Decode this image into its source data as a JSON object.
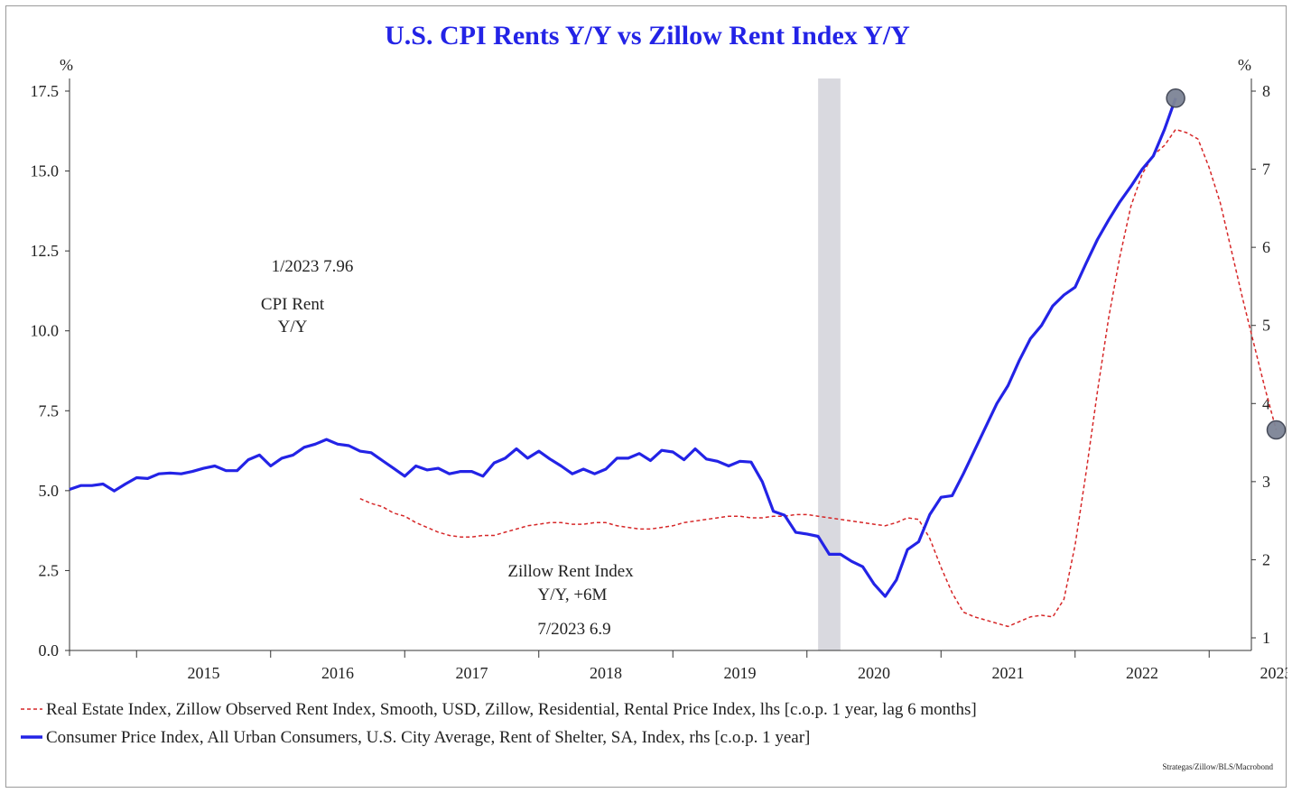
{
  "chart_data": {
    "type": "line",
    "title": "U.S. CPI Rents Y/Y vs Zillow Rent Index Y/Y",
    "left_axis": {
      "unit": "%",
      "ylim": [
        0,
        17.5
      ],
      "ticks": [
        "0.0",
        "2.5",
        "5.0",
        "7.5",
        "10.0",
        "12.5",
        "15.0",
        "17.5"
      ]
    },
    "right_axis": {
      "unit": "%",
      "ylim": [
        1,
        8
      ],
      "ticks": [
        "1",
        "2",
        "3",
        "4",
        "5",
        "6",
        "7",
        "8"
      ]
    },
    "x_axis": {
      "range": [
        "2014-07",
        "2023-10"
      ],
      "tick_labels": [
        "2015",
        "2016",
        "2017",
        "2018",
        "2019",
        "2020",
        "2021",
        "2022",
        "2023"
      ]
    },
    "recession": {
      "start": "2020-02",
      "end": "2020-04"
    },
    "series": [
      {
        "name": "Real Estate Index, Zillow Observed Rent Index, Smooth, USD, Zillow, Residential, Rental Price Index, lhs [c.o.p. 1 year, lag 6 months]",
        "axis": "left",
        "style": "dashed",
        "color": "#d62728",
        "points": [
          [
            "2016-09",
            4.75
          ],
          [
            "2016-10",
            4.6
          ],
          [
            "2016-11",
            4.5
          ],
          [
            "2016-12",
            4.3
          ],
          [
            "2017-01",
            4.2
          ],
          [
            "2017-02",
            4.0
          ],
          [
            "2017-03",
            3.85
          ],
          [
            "2017-04",
            3.7
          ],
          [
            "2017-05",
            3.6
          ],
          [
            "2017-06",
            3.55
          ],
          [
            "2017-07",
            3.55
          ],
          [
            "2017-08",
            3.6
          ],
          [
            "2017-09",
            3.6
          ],
          [
            "2017-10",
            3.7
          ],
          [
            "2017-11",
            3.8
          ],
          [
            "2017-12",
            3.9
          ],
          [
            "2018-01",
            3.95
          ],
          [
            "2018-02",
            4.0
          ],
          [
            "2018-03",
            4.0
          ],
          [
            "2018-04",
            3.95
          ],
          [
            "2018-05",
            3.95
          ],
          [
            "2018-06",
            4.0
          ],
          [
            "2018-07",
            4.0
          ],
          [
            "2018-08",
            3.9
          ],
          [
            "2018-09",
            3.85
          ],
          [
            "2018-10",
            3.8
          ],
          [
            "2018-11",
            3.8
          ],
          [
            "2018-12",
            3.85
          ],
          [
            "2019-01",
            3.9
          ],
          [
            "2019-02",
            4.0
          ],
          [
            "2019-03",
            4.05
          ],
          [
            "2019-04",
            4.1
          ],
          [
            "2019-05",
            4.15
          ],
          [
            "2019-06",
            4.2
          ],
          [
            "2019-07",
            4.2
          ],
          [
            "2019-08",
            4.15
          ],
          [
            "2019-09",
            4.15
          ],
          [
            "2019-10",
            4.2
          ],
          [
            "2019-11",
            4.2
          ],
          [
            "2019-12",
            4.25
          ],
          [
            "2020-01",
            4.25
          ],
          [
            "2020-02",
            4.2
          ],
          [
            "2020-03",
            4.15
          ],
          [
            "2020-04",
            4.1
          ],
          [
            "2020-05",
            4.05
          ],
          [
            "2020-06",
            4.0
          ],
          [
            "2020-07",
            3.95
          ],
          [
            "2020-08",
            3.9
          ],
          [
            "2020-09",
            4.0
          ],
          [
            "2020-10",
            4.15
          ],
          [
            "2020-11",
            4.1
          ],
          [
            "2020-12",
            3.5
          ],
          [
            "2021-01",
            2.6
          ],
          [
            "2021-02",
            1.8
          ],
          [
            "2021-03",
            1.2
          ],
          [
            "2021-04",
            1.05
          ],
          [
            "2021-05",
            0.95
          ],
          [
            "2021-06",
            0.85
          ],
          [
            "2021-07",
            0.75
          ],
          [
            "2021-08",
            0.9
          ],
          [
            "2021-09",
            1.05
          ],
          [
            "2021-10",
            1.1
          ],
          [
            "2021-11",
            1.05
          ],
          [
            "2021-12",
            1.6
          ],
          [
            "2022-01",
            3.3
          ],
          [
            "2022-02",
            5.6
          ],
          [
            "2022-03",
            8.1
          ],
          [
            "2022-04",
            10.4
          ],
          [
            "2022-05",
            12.3
          ],
          [
            "2022-06",
            13.9
          ],
          [
            "2022-07",
            14.9
          ],
          [
            "2022-08",
            15.5
          ],
          [
            "2022-09",
            15.8
          ],
          [
            "2022-10",
            16.3
          ],
          [
            "2022-11",
            16.2
          ],
          [
            "2022-12",
            16.0
          ],
          [
            "2023-01",
            15.1
          ],
          [
            "2023-02",
            14.0
          ],
          [
            "2023-03",
            12.5
          ],
          [
            "2023-04",
            11.0
          ],
          [
            "2023-05",
            9.6
          ],
          [
            "2023-06",
            8.2
          ],
          [
            "2023-07",
            6.9
          ]
        ]
      },
      {
        "name": "Consumer Price Index, All Urban Consumers, U.S. City Average, Rent of Shelter, SA, Index, rhs [c.o.p. 1 year]",
        "axis": "right",
        "style": "solid",
        "color": "#2323e6",
        "points": [
          [
            "2014-07",
            2.9
          ],
          [
            "2014-08",
            2.95
          ],
          [
            "2014-09",
            2.95
          ],
          [
            "2014-10",
            2.97
          ],
          [
            "2014-11",
            2.88
          ],
          [
            "2014-12",
            2.97
          ],
          [
            "2015-01",
            3.05
          ],
          [
            "2015-02",
            3.04
          ],
          [
            "2015-03",
            3.1
          ],
          [
            "2015-04",
            3.11
          ],
          [
            "2015-05",
            3.1
          ],
          [
            "2015-06",
            3.13
          ],
          [
            "2015-07",
            3.17
          ],
          [
            "2015-08",
            3.2
          ],
          [
            "2015-09",
            3.14
          ],
          [
            "2015-10",
            3.14
          ],
          [
            "2015-11",
            3.28
          ],
          [
            "2015-12",
            3.34
          ],
          [
            "2016-01",
            3.2
          ],
          [
            "2016-02",
            3.3
          ],
          [
            "2016-03",
            3.34
          ],
          [
            "2016-04",
            3.44
          ],
          [
            "2016-05",
            3.48
          ],
          [
            "2016-06",
            3.54
          ],
          [
            "2016-07",
            3.48
          ],
          [
            "2016-08",
            3.46
          ],
          [
            "2016-09",
            3.39
          ],
          [
            "2016-10",
            3.37
          ],
          [
            "2016-11",
            3.27
          ],
          [
            "2016-12",
            3.17
          ],
          [
            "2017-01",
            3.07
          ],
          [
            "2017-02",
            3.2
          ],
          [
            "2017-03",
            3.15
          ],
          [
            "2017-04",
            3.17
          ],
          [
            "2017-05",
            3.1
          ],
          [
            "2017-06",
            3.13
          ],
          [
            "2017-07",
            3.13
          ],
          [
            "2017-08",
            3.07
          ],
          [
            "2017-09",
            3.24
          ],
          [
            "2017-10",
            3.3
          ],
          [
            "2017-11",
            3.42
          ],
          [
            "2017-12",
            3.3
          ],
          [
            "2018-01",
            3.39
          ],
          [
            "2018-02",
            3.29
          ],
          [
            "2018-03",
            3.2
          ],
          [
            "2018-04",
            3.1
          ],
          [
            "2018-05",
            3.16
          ],
          [
            "2018-06",
            3.1
          ],
          [
            "2018-07",
            3.16
          ],
          [
            "2018-08",
            3.3
          ],
          [
            "2018-09",
            3.3
          ],
          [
            "2018-10",
            3.36
          ],
          [
            "2018-11",
            3.27
          ],
          [
            "2018-12",
            3.4
          ],
          [
            "2019-01",
            3.38
          ],
          [
            "2019-02",
            3.28
          ],
          [
            "2019-03",
            3.42
          ],
          [
            "2019-04",
            3.29
          ],
          [
            "2019-05",
            3.26
          ],
          [
            "2019-06",
            3.2
          ],
          [
            "2019-07",
            3.26
          ],
          [
            "2019-08",
            3.25
          ],
          [
            "2019-09",
            3.0
          ],
          [
            "2019-10",
            2.62
          ],
          [
            "2019-11",
            2.57
          ],
          [
            "2019-12",
            2.35
          ],
          [
            "2020-01",
            2.33
          ],
          [
            "2020-02",
            2.3
          ],
          [
            "2020-03",
            2.07
          ],
          [
            "2020-04",
            2.07
          ],
          [
            "2020-05",
            1.98
          ],
          [
            "2020-06",
            1.91
          ],
          [
            "2020-07",
            1.69
          ],
          [
            "2020-08",
            1.53
          ],
          [
            "2020-09",
            1.74
          ],
          [
            "2020-10",
            2.13
          ],
          [
            "2020-11",
            2.23
          ],
          [
            "2020-12",
            2.58
          ],
          [
            "2021-01",
            2.8
          ],
          [
            "2021-02",
            2.82
          ],
          [
            "2021-03",
            3.1
          ],
          [
            "2021-04",
            3.4
          ],
          [
            "2021-05",
            3.7
          ],
          [
            "2021-06",
            4.0
          ],
          [
            "2021-07",
            4.23
          ],
          [
            "2021-08",
            4.55
          ],
          [
            "2021-09",
            4.83
          ],
          [
            "2021-10",
            5.0
          ],
          [
            "2021-11",
            5.25
          ],
          [
            "2021-12",
            5.39
          ],
          [
            "2022-01",
            5.49
          ],
          [
            "2022-02",
            5.8
          ],
          [
            "2022-03",
            6.1
          ],
          [
            "2022-04",
            6.35
          ],
          [
            "2022-05",
            6.58
          ],
          [
            "2022-06",
            6.78
          ],
          [
            "2022-07",
            7.0
          ],
          [
            "2022-08",
            7.17
          ],
          [
            "2022-09",
            7.51
          ],
          [
            "2022-10",
            7.91
          ]
        ]
      }
    ]
  },
  "annotations": {
    "cpi_value": "1/2023 7.96",
    "cpi_label_1": "CPI Rent",
    "cpi_label_2": "Y/Y",
    "zillow_label_1": "Zillow Rent Index",
    "zillow_label_2": "Y/Y, +6M",
    "zillow_value": "7/2023 6.9"
  },
  "legend": {
    "zillow": "Real Estate Index, Zillow Observed Rent Index, Smooth, USD, Zillow, Residential, Rental Price Index, lhs [c.o.p. 1 year, lag 6 months]",
    "cpi": "Consumer Price Index, All Urban Consumers, U.S. City Average, Rent of Shelter, SA, Index, rhs [c.o.p. 1 year]"
  },
  "source": "Strategas/Zillow/BLS/Macrobond",
  "colors": {
    "cpi": "#2323e6",
    "zillow": "#d62728",
    "recession": "#d9d9df",
    "marker": "#7d8496",
    "title": "#2323e6"
  }
}
